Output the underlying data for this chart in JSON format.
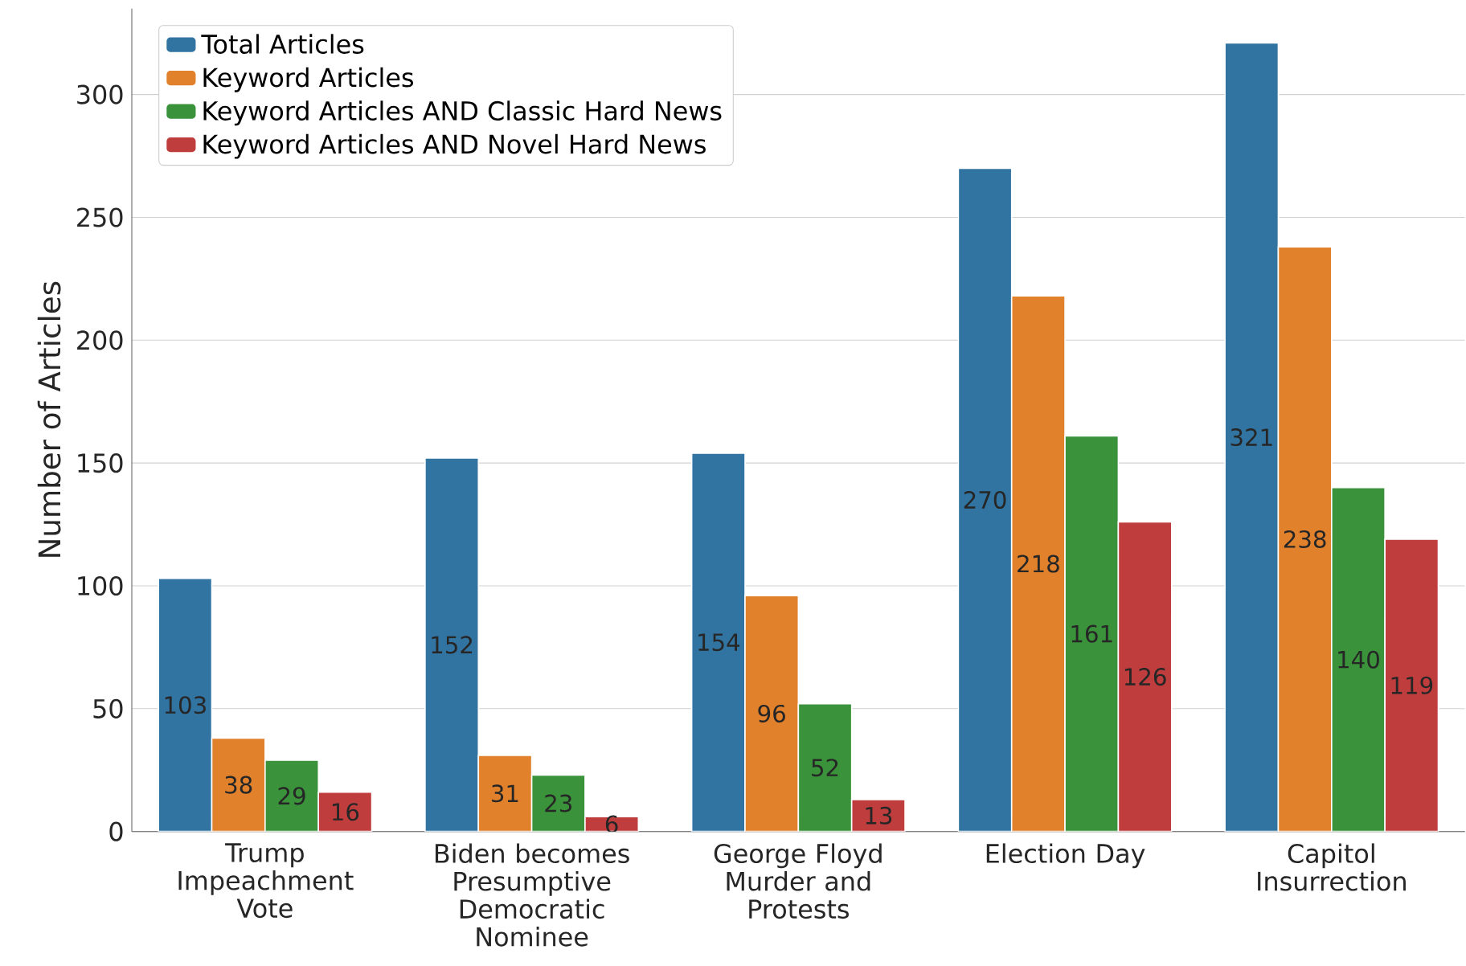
{
  "chart_data": {
    "type": "bar",
    "ylabel": "Number of Articles",
    "categories": [
      "Trump Impeachment Vote",
      "Biden becomes Presumptive Democratic Nominee",
      "George Floyd Murder and Protests",
      "Election Day",
      "Capitol Insurrection"
    ],
    "series": [
      {
        "name": "Total Articles",
        "color": "#3274a1",
        "values": [
          103,
          152,
          154,
          270,
          321
        ]
      },
      {
        "name": "Keyword Articles",
        "color": "#e1812c",
        "values": [
          38,
          31,
          96,
          218,
          238
        ]
      },
      {
        "name": "Keyword Articles AND Classic Hard News",
        "color": "#3a923a",
        "values": [
          29,
          23,
          52,
          161,
          140
        ]
      },
      {
        "name": "Keyword Articles AND Novel Hard News",
        "color": "#c03d3e",
        "values": [
          16,
          6,
          13,
          126,
          119
        ]
      }
    ],
    "ylim": [
      0,
      335
    ],
    "yticks": [
      0,
      50,
      100,
      150,
      200,
      250,
      300
    ],
    "grid": "y",
    "legend": "top left",
    "data_labels": true
  }
}
